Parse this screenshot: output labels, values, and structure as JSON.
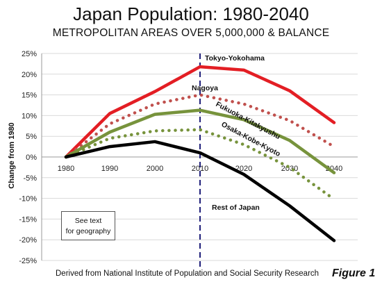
{
  "title": "Japan Population: 1980-2040",
  "subtitle": "METROPOLITAN AREAS OVER 5,000,000 & BALANCE",
  "note": "Derived from National Institute of Population and Social Security Research",
  "figure_label": "Figure 1",
  "textbox": {
    "line1": "See text",
    "line2": "for geography"
  },
  "chart_data": {
    "type": "line",
    "x": [
      1980,
      1990,
      2000,
      2010,
      2020,
      2030,
      2040
    ],
    "ylabel": "Change from 1980",
    "ylim": [
      -25,
      25
    ],
    "y_ticks": [
      25,
      20,
      15,
      10,
      5,
      0,
      -5,
      -10,
      -15,
      -20,
      -25
    ],
    "y_tick_labels": [
      "25%",
      "20%",
      "15%",
      "10%",
      "5%",
      "0%",
      "-5%",
      "-10%",
      "-15%",
      "-20%",
      "-25%"
    ],
    "x_tick_labels": [
      "1980",
      "1990",
      "2000",
      "2010",
      "2020",
      "2030",
      "2040"
    ],
    "vertical_marker_x": 2010,
    "grid": "horizontal",
    "series": [
      {
        "name": "Tokyo-Yokohama",
        "values": [
          0,
          10.5,
          15.8,
          21.8,
          21.0,
          16.0,
          8.3
        ],
        "color": "#e31e24",
        "style": "solid"
      },
      {
        "name": "Nagoya",
        "values": [
          0,
          8.0,
          12.8,
          15.0,
          12.8,
          8.8,
          2.5
        ],
        "color": "#c0504d",
        "style": "dotted"
      },
      {
        "name": "Fukuoka-Kitakyushu",
        "values": [
          0,
          6.0,
          10.3,
          11.3,
          9.0,
          4.0,
          -3.8
        ],
        "color": "#77933c",
        "style": "solid"
      },
      {
        "name": "Osaka-Kobe-Kyoto",
        "values": [
          0,
          4.5,
          6.3,
          6.6,
          3.0,
          -2.5,
          -10.2
        ],
        "color": "#77933c",
        "style": "dotted"
      },
      {
        "name": "Rest of Japan",
        "values": [
          0,
          2.5,
          3.7,
          1.0,
          -4.2,
          -11.8,
          -20.2
        ],
        "color": "#000000",
        "style": "solid"
      }
    ]
  }
}
